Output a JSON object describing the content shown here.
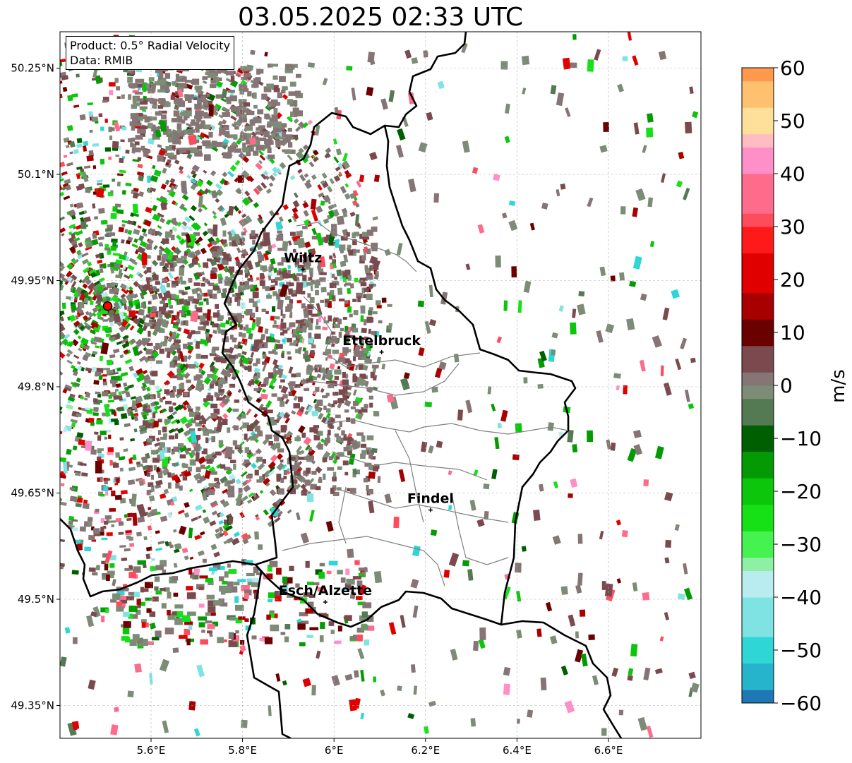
{
  "title": "03.05.2025 02:33 UTC",
  "info": {
    "product": "Product: 0.5° Radial Velocity",
    "source": "Data: RMIB"
  },
  "map": {
    "lon_range": [
      5.4,
      6.8
    ],
    "lat_range": [
      49.3,
      50.3
    ],
    "lon_ticks": [
      {
        "value": 5.6,
        "label": "5.6°E"
      },
      {
        "value": 5.8,
        "label": "5.8°E"
      },
      {
        "value": 6.0,
        "label": "6°E"
      },
      {
        "value": 6.2,
        "label": "6.2°E"
      },
      {
        "value": 6.4,
        "label": "6.4°E"
      },
      {
        "value": 6.6,
        "label": "6.6°E"
      }
    ],
    "lat_ticks": [
      {
        "value": 49.35,
        "label": "49.35°N"
      },
      {
        "value": 49.5,
        "label": "49.5°N"
      },
      {
        "value": 49.65,
        "label": "49.65°N"
      },
      {
        "value": 49.8,
        "label": "49.8°N"
      },
      {
        "value": 49.95,
        "label": "49.95°N"
      },
      {
        "value": 50.1,
        "label": "50.1°N"
      },
      {
        "value": 50.25,
        "label": "50.25°N"
      }
    ],
    "grid": true,
    "radar_site": {
      "lon": 5.505,
      "lat": 49.914
    },
    "places": [
      {
        "name": "Wiltz",
        "lon": 5.932,
        "lat": 49.966
      },
      {
        "name": "Ettelbruck",
        "lon": 6.104,
        "lat": 49.849
      },
      {
        "name": "Findel",
        "lon": 6.211,
        "lat": 49.626
      },
      {
        "name": "Esch/Alzette",
        "lon": 5.981,
        "lat": 49.496
      }
    ]
  },
  "colorbar": {
    "label": "m/s",
    "min": -60,
    "max": 60,
    "tick_values": [
      60,
      50,
      40,
      30,
      20,
      10,
      0,
      -10,
      -20,
      -30,
      -40,
      -50,
      -60
    ],
    "tick_labels": [
      "60",
      "50",
      "40",
      "30",
      "20",
      "10",
      "0",
      "−10",
      "−20",
      "−30",
      "−40",
      "−50",
      "−60"
    ],
    "stops": [
      {
        "v": -60,
        "c": "#1f77b4"
      },
      {
        "v": -55,
        "c": "#26b3cc"
      },
      {
        "v": -50,
        "c": "#2ed6d6"
      },
      {
        "v": -44,
        "c": "#7fe3e3"
      },
      {
        "v": -38,
        "c": "#b8ecef"
      },
      {
        "v": -34,
        "c": "#8ff0a5"
      },
      {
        "v": -30,
        "c": "#45f24f"
      },
      {
        "v": -26,
        "c": "#16e016"
      },
      {
        "v": -20,
        "c": "#0bc60b"
      },
      {
        "v": -15,
        "c": "#049a04"
      },
      {
        "v": -10,
        "c": "#005f00"
      },
      {
        "v": -6,
        "c": "#547a54"
      },
      {
        "v": -1,
        "c": "#7d8c77"
      },
      {
        "v": 1,
        "c": "#857575"
      },
      {
        "v": 6,
        "c": "#7b4a4f"
      },
      {
        "v": 8,
        "c": "#6b0000"
      },
      {
        "v": 15,
        "c": "#a80000"
      },
      {
        "v": 22,
        "c": "#e00000"
      },
      {
        "v": 28,
        "c": "#ff1a1a"
      },
      {
        "v": 30,
        "c": "#ff4c5c"
      },
      {
        "v": 37,
        "c": "#ff6b8a"
      },
      {
        "v": 42,
        "c": "#ff8fc8"
      },
      {
        "v": 46,
        "c": "#ffbcc2"
      },
      {
        "v": 50,
        "c": "#ffe09a"
      },
      {
        "v": 55,
        "c": "#ffc070"
      },
      {
        "v": 60,
        "c": "#ff9a4c"
      }
    ]
  },
  "colors": {
    "border": "#000000",
    "district_lines": "#808080",
    "radar_marker": "#ff0000"
  }
}
